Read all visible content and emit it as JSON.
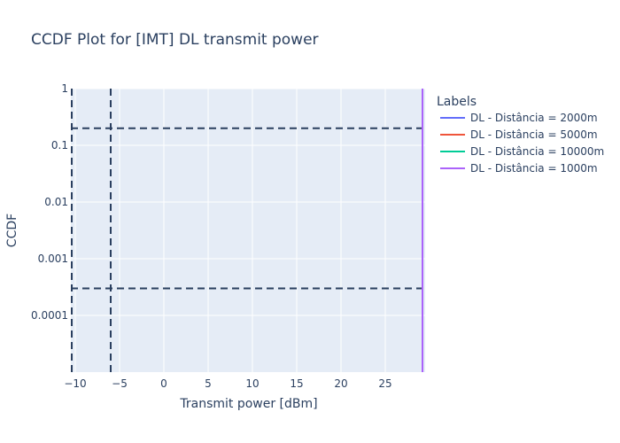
{
  "chart_data": {
    "type": "line",
    "title": "CCDF Plot for [IMT] DL transmit power",
    "xlabel": "Transmit power [dBm]",
    "ylabel": "CCDF",
    "x_scale": "linear",
    "y_scale": "log",
    "xlim": [
      -10.5,
      29.5
    ],
    "ylim": [
      1e-05,
      1
    ],
    "x_ticks": [
      -10,
      -5,
      0,
      5,
      10,
      15,
      20,
      25
    ],
    "x_tick_labels": [
      "−10",
      "−5",
      "0",
      "5",
      "10",
      "15",
      "20",
      "25"
    ],
    "y_ticks": [
      1,
      0.1,
      0.01,
      0.001,
      0.0001
    ],
    "y_tick_labels": [
      "1",
      "0.1",
      "0.01",
      "0.001",
      "0.0001"
    ],
    "grid": true,
    "legend_position": "right",
    "legend_title": "Labels",
    "series": [
      {
        "name": "DL - Distância = 2000m",
        "color": "#636efa",
        "x": [
          29.2,
          29.2
        ],
        "y": [
          1e-05,
          1
        ]
      },
      {
        "name": "DL - Distância = 5000m",
        "color": "#ef553b",
        "x": [
          29.2,
          29.2
        ],
        "y": [
          1e-05,
          1
        ]
      },
      {
        "name": "DL - Distância = 10000m",
        "color": "#00cc96",
        "x": [
          29.2,
          29.2
        ],
        "y": [
          1e-05,
          1
        ]
      },
      {
        "name": "DL - Distância = 1000m",
        "color": "#ab63fa",
        "x": [
          29.2,
          29.2
        ],
        "y": [
          1e-05,
          1
        ]
      }
    ],
    "reference_lines": {
      "horizontal": [
        0.2,
        0.0003
      ],
      "vertical": [
        -10.4,
        -6
      ],
      "color": "#2a3f5f",
      "style": "dashed"
    }
  }
}
